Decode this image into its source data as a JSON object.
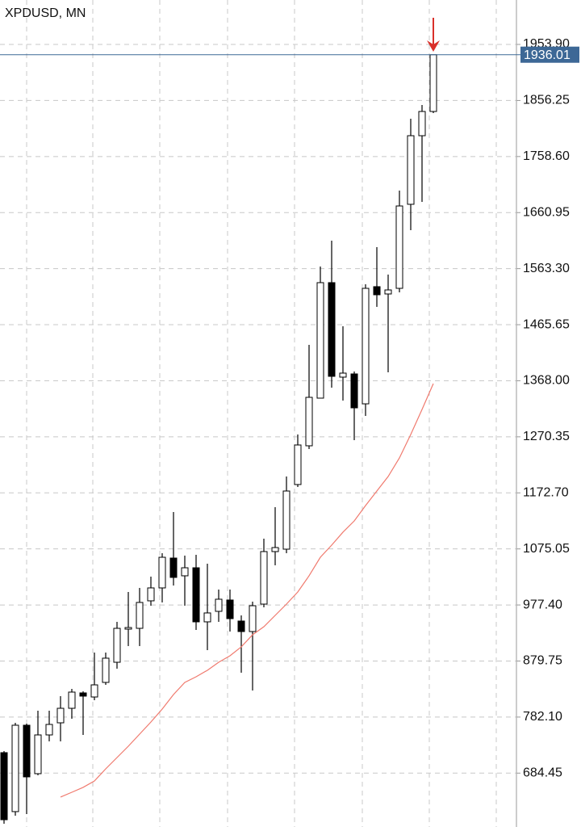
{
  "chart_data": {
    "type": "candlestick",
    "title": "XPDUSD, MN",
    "categories": [
      null,
      null,
      null,
      null,
      null,
      null,
      null,
      null,
      null,
      null,
      null,
      null,
      null,
      null,
      null,
      null,
      null,
      null,
      null,
      null,
      null,
      null,
      null,
      null,
      null,
      null,
      null,
      null,
      null,
      null,
      null,
      null,
      null,
      null,
      null,
      null,
      null,
      null,
      null
    ],
    "open": [
      720.1,
      617.4,
      767.9,
      683.5,
      751.0,
      772.1,
      797.4,
      824.2,
      817.1,
      842.5,
      877.6,
      935.3,
      936.7,
      984.6,
      1007.1,
      1059.1,
      1028.2,
      1042.2,
      948.0,
      966.3,
      986.0,
      949.4,
      931.1,
      978.9,
      1070.4,
      1074.6,
      1187.2,
      1254.7,
      1337.7,
      1538.9,
      1374.3,
      1379.9,
      1327.8,
      1531.9,
      1519.2,
      1529.0,
      1675.4,
      1794.9,
      1837.1
    ],
    "high": [
      722.9,
      772.1,
      770.7,
      793.2,
      793.2,
      818.6,
      831.2,
      827.0,
      894.5,
      894.5,
      948.0,
      1000.0,
      1007.1,
      1026.8,
      1067.6,
      1139.3,
      1063.4,
      1064.8,
      1049.3,
      1004.3,
      1004.3,
      959.2,
      983.2,
      1092.9,
      1147.8,
      1201.2,
      1274.4,
      1430.6,
      1567.0,
      1612.0,
      1462.9,
      1384.1,
      1536.1,
      1600.8,
      1553.0,
      1699.3,
      1824.5,
      1848.4,
      1936.01
    ],
    "low": [
      596.3,
      610.3,
      613.1,
      680.7,
      739.8,
      739.8,
      779.2,
      751.0,
      811.5,
      838.2,
      866.4,
      905.8,
      905.8,
      976.1,
      981.8,
      1011.3,
      976.1,
      933.9,
      898.7,
      948.0,
      931.1,
      859.4,
      828.4,
      973.3,
      1046.5,
      1067.6,
      1182.9,
      1249.1,
      1337.7,
      1356.0,
      1333.5,
      1264.5,
      1306.7,
      1496.7,
      1382.7,
      1522.0,
      1630.3,
      1679.6,
      1834.3
    ],
    "close": [
      603.3,
      767.9,
      677.9,
      751.0,
      769.3,
      797.4,
      825.6,
      818.6,
      838.2,
      884.7,
      936.7,
      938.1,
      981.8,
      1007.1,
      1060.5,
      1025.4,
      1042.2,
      948.0,
      963.5,
      987.4,
      953.6,
      931.1,
      976.1,
      1070.4,
      1077.4,
      1175.9,
      1256.1,
      1339.1,
      1538.9,
      1375.7,
      1381.3,
      1320.8,
      1529.0,
      1517.8,
      1526.2,
      1672.5,
      1794.9,
      1837.1,
      1936.01
    ],
    "ma": [
      null,
      null,
      null,
      null,
      null,
      642.7,
      651.1,
      659.6,
      670.8,
      691.9,
      711.6,
      731.3,
      752.4,
      773.5,
      796.0,
      821.4,
      842.5,
      852.3,
      863.6,
      877.6,
      888.9,
      904.4,
      925.5,
      939.5,
      959.2,
      978.9,
      1000.0,
      1028.2,
      1060.5,
      1081.6,
      1104.2,
      1123.8,
      1150.6,
      1175.9,
      1201.2,
      1233.6,
      1274.4,
      1318.0,
      1363.0
    ],
    "ma_color": "#f07a6e",
    "up_color": "#ffffff",
    "down_color": "#000000",
    "current_price": 1936.01,
    "current_price_color": "#3d6896",
    "ylim": [
      590.6,
      2031.3
    ],
    "yticks": [
      {
        "value": 1953.9,
        "label": "1953.90"
      },
      1856.25,
      {
        "value": 1758.6,
        "label": "1758.60"
      },
      1660.95,
      {
        "value": 1563.3,
        "label": "1563.30"
      },
      1465.65,
      {
        "value": 1368,
        "label": "1368.00"
      },
      1270.35,
      {
        "value": 1172.7,
        "label": "1172.70"
      },
      1075.05,
      {
        "value": 977.4,
        "label": "977.40"
      },
      879.75,
      {
        "value": 782.1,
        "label": "782.10"
      },
      684.45
    ],
    "grid": true
  }
}
